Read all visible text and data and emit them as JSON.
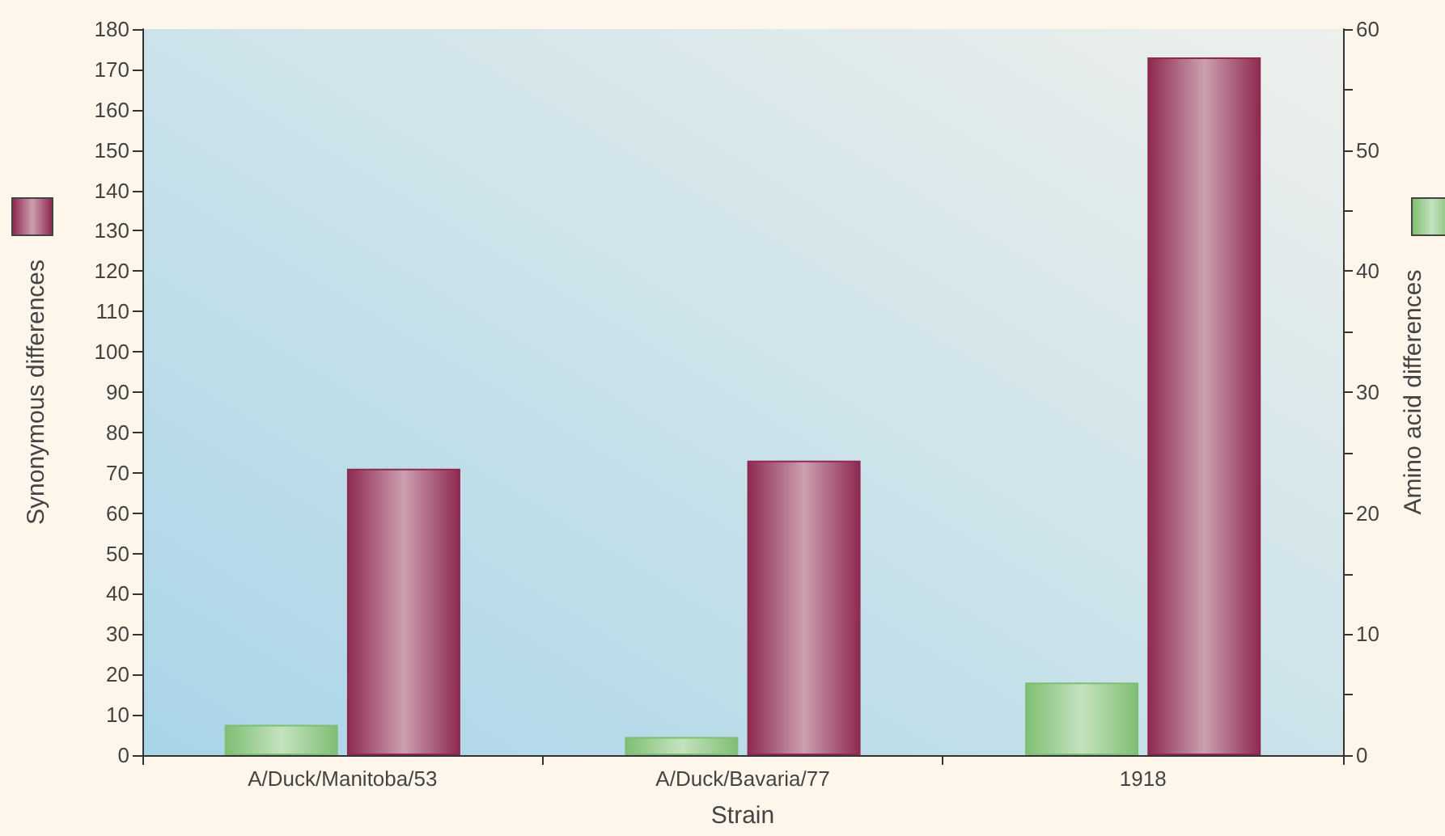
{
  "chart_data": {
    "type": "bar",
    "xlabel": "Strain",
    "ylabel": "Synonymous differences",
    "y2label": "Amino acid differences",
    "categories": [
      "A/Duck/Manitoba/53",
      "A/Duck/Bavaria/77",
      "1918"
    ],
    "series": [
      {
        "color": "#7fbf73",
        "axis": "y2",
        "values": [
          2.5,
          1.5,
          6
        ]
      },
      {
        "color": "#8e2a50",
        "values": [
          71,
          73,
          173
        ]
      }
    ],
    "ylim": [
      0,
      180
    ],
    "yticks": [
      0,
      10,
      20,
      30,
      40,
      50,
      60,
      70,
      80,
      90,
      100,
      110,
      120,
      130,
      140,
      150,
      160,
      170,
      180
    ],
    "y2lim": [
      0,
      60
    ],
    "y2ticks": [
      0,
      {
        "value": 5,
        "label": null
      },
      10,
      {
        "value": 15,
        "label": null
      },
      20,
      {
        "value": 25,
        "label": null
      },
      30,
      {
        "value": 35,
        "label": null
      },
      40,
      {
        "value": 45,
        "label": null
      },
      50,
      {
        "value": 55,
        "label": null
      },
      60
    ],
    "grid": false
  }
}
